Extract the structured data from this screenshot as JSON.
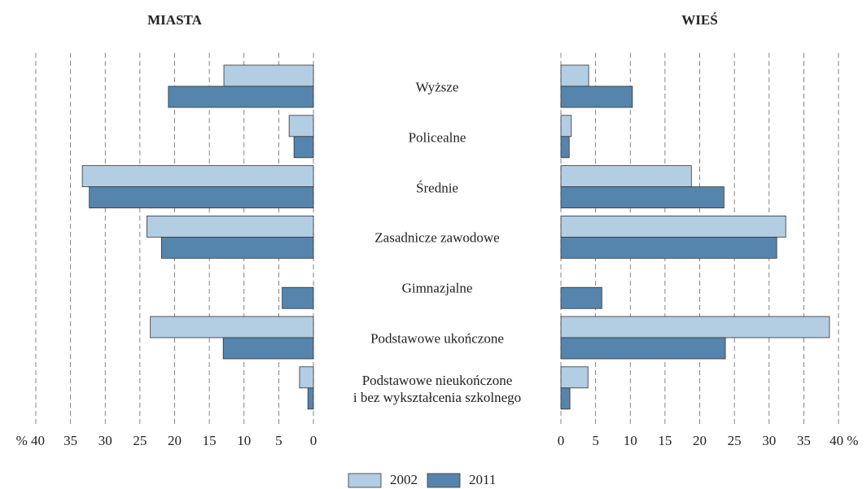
{
  "chart_data": {
    "type": "bar",
    "orientation": "horizontal",
    "categories": [
      "Wyższe",
      "Policealne",
      "Średnie",
      "Zasadnicze zawodowe",
      "Gimnazjalne",
      "Podstawowe ukończone",
      "Podstawowe nieukończone\ni bez wykształcenia szkolnego"
    ],
    "series": [
      {
        "name": "2002",
        "color": "#b3cde3"
      },
      {
        "name": "2011",
        "color": "#5585ad"
      }
    ],
    "grid": true,
    "panels": [
      {
        "title": "MIASTA",
        "xlim": [
          40,
          0
        ],
        "xticks": [
          {
            "value": 40,
            "label": "% 40"
          },
          35,
          30,
          25,
          20,
          15,
          10,
          5,
          0
        ],
        "values": [
          [
            12.9,
            3.5,
            33.3,
            24.0,
            null,
            23.5,
            2.0
          ],
          [
            20.9,
            2.8,
            32.3,
            21.9,
            4.5,
            13.0,
            0.8
          ]
        ]
      },
      {
        "title": "WIEŚ",
        "xlim": [
          0,
          40
        ],
        "xticks": [
          0,
          5,
          10,
          15,
          20,
          25,
          30,
          35,
          {
            "value": 40,
            "label": "40 %"
          }
        ],
        "values": [
          [
            4.0,
            1.5,
            18.8,
            32.4,
            null,
            38.7,
            3.9
          ],
          [
            10.3,
            1.2,
            23.5,
            31.1,
            5.9,
            23.7,
            1.3
          ]
        ]
      }
    ]
  }
}
